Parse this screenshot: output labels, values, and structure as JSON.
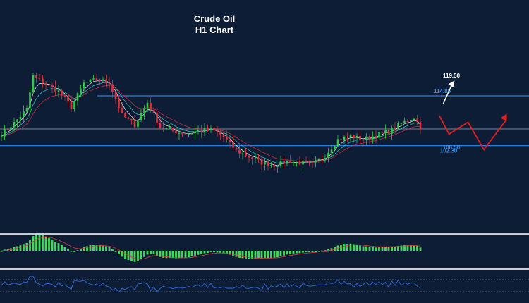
{
  "colors": {
    "background": "#0c1d35",
    "up_candle": "#2ecc40",
    "down_candle": "#e0303a",
    "level_line": "#2f7de0",
    "mid_line": "#9aa6b4",
    "panel_separator": "#c7ccd3",
    "histogram": "#3ddc5a",
    "signal": "#e03a3a",
    "oscillator": "#2f6ce0",
    "target_arrow": "#ffffff",
    "projection": "#e01f1f",
    "label_blue": "#3b8bea",
    "label_white": "#ffffff"
  },
  "chart_data": {
    "type": "candlestick",
    "title": "Crude Oil",
    "subtitle": "H1 Chart",
    "levels": [
      {
        "name": "resistance",
        "value": 114.85,
        "label": "114.85"
      },
      {
        "name": "pivot",
        "value": 106.5,
        "label": "106.50"
      },
      {
        "name": "support",
        "value": 102.3,
        "label": "102.30"
      }
    ],
    "target": {
      "value": 119.5,
      "label": "119.50"
    },
    "price_path": [
      {
        "bar": 0,
        "close": 105.2
      },
      {
        "bar": 4,
        "close": 108.0
      },
      {
        "bar": 8,
        "close": 111.5
      },
      {
        "bar": 10,
        "close": 119.8
      },
      {
        "bar": 14,
        "close": 117.8
      },
      {
        "bar": 18,
        "close": 116.0
      },
      {
        "bar": 22,
        "close": 112.0
      },
      {
        "bar": 26,
        "close": 118.0
      },
      {
        "bar": 30,
        "close": 119.0
      },
      {
        "bar": 34,
        "close": 118.2
      },
      {
        "bar": 38,
        "close": 110.0
      },
      {
        "bar": 42,
        "close": 107.5
      },
      {
        "bar": 46,
        "close": 113.2
      },
      {
        "bar": 50,
        "close": 107.0
      },
      {
        "bar": 54,
        "close": 106.0
      },
      {
        "bar": 58,
        "close": 105.2
      },
      {
        "bar": 62,
        "close": 106.0
      },
      {
        "bar": 66,
        "close": 106.4
      },
      {
        "bar": 70,
        "close": 104.5
      },
      {
        "bar": 74,
        "close": 101.0
      },
      {
        "bar": 78,
        "close": 99.5
      },
      {
        "bar": 82,
        "close": 98.0
      },
      {
        "bar": 86,
        "close": 97.4
      },
      {
        "bar": 90,
        "close": 98.3
      },
      {
        "bar": 94,
        "close": 98.0
      },
      {
        "bar": 98,
        "close": 97.6
      },
      {
        "bar": 102,
        "close": 99.8
      },
      {
        "bar": 106,
        "close": 103.8
      },
      {
        "bar": 110,
        "close": 104.7
      },
      {
        "bar": 114,
        "close": 103.9
      },
      {
        "bar": 118,
        "close": 104.9
      },
      {
        "bar": 122,
        "close": 105.9
      },
      {
        "bar": 126,
        "close": 107.9
      },
      {
        "bar": 130,
        "close": 109.4
      },
      {
        "bar": 132,
        "close": 107.0
      }
    ],
    "projection_path": [
      {
        "bar": 138,
        "price": 109.8
      },
      {
        "bar": 141,
        "price": 105.2
      },
      {
        "bar": 147,
        "price": 108.2
      },
      {
        "bar": 152,
        "price": 101.3
      },
      {
        "bar": 159,
        "price": 109.8
      }
    ],
    "target_arrow": [
      {
        "bar": 139,
        "price": 112.7
      },
      {
        "bar": 142,
        "price": 118.0
      }
    ],
    "indicators": [
      {
        "type": "histogram",
        "panel": "upper"
      },
      {
        "type": "line",
        "panel": "lower"
      }
    ]
  }
}
